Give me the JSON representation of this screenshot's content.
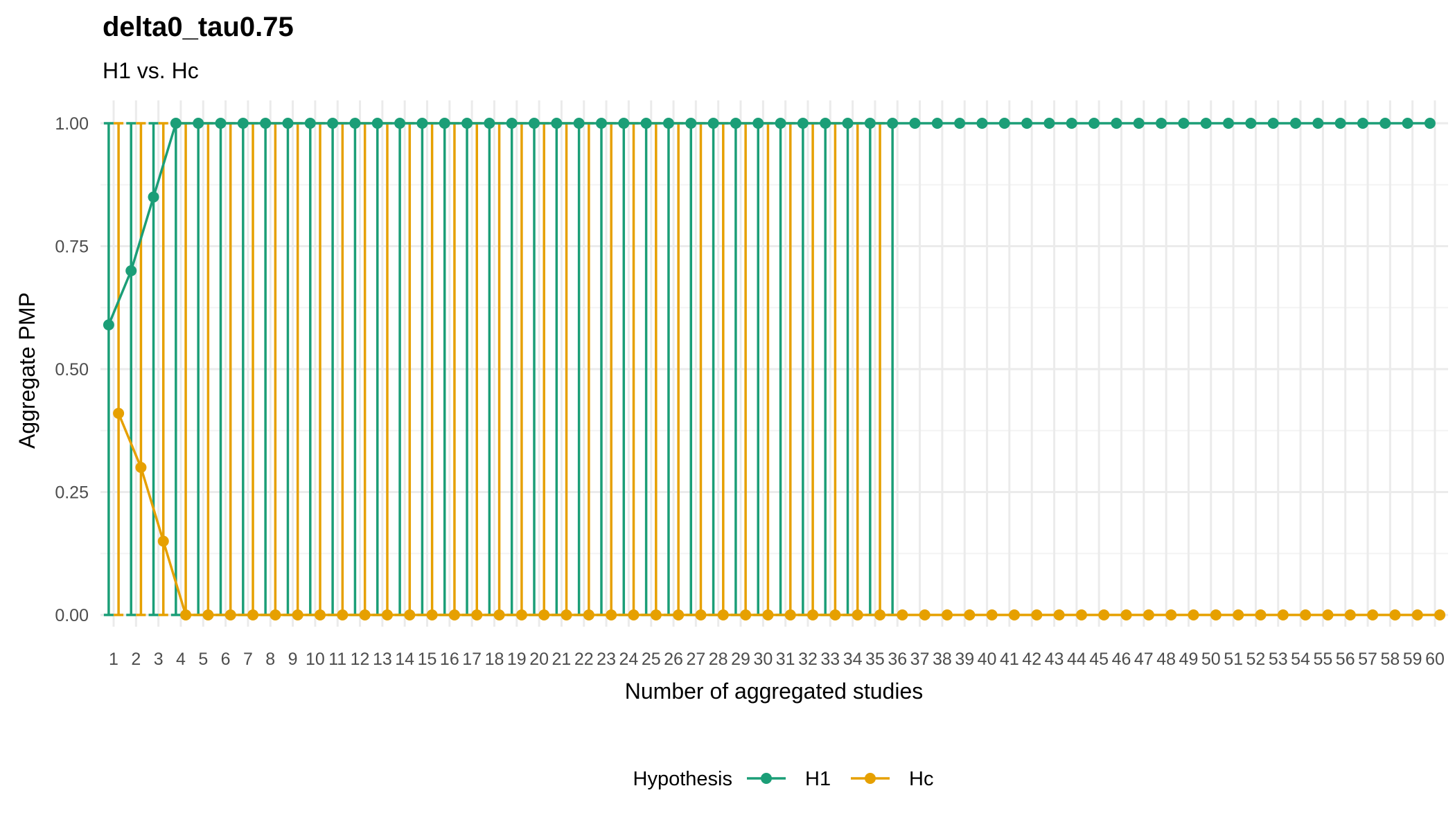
{
  "chart_data": {
    "type": "line",
    "title": "delta0_tau0.75",
    "subtitle": "H1 vs. Hc",
    "xlabel": "Number of aggregated studies",
    "ylabel": "Aggregate PMP",
    "ylim": [
      0,
      1
    ],
    "xlim": [
      1,
      60
    ],
    "y_ticks": [
      "0.00",
      "0.25",
      "0.50",
      "0.75",
      "1.00"
    ],
    "x": [
      1,
      2,
      3,
      4,
      5,
      6,
      7,
      8,
      9,
      10,
      11,
      12,
      13,
      14,
      15,
      16,
      17,
      18,
      19,
      20,
      21,
      22,
      23,
      24,
      25,
      26,
      27,
      28,
      29,
      30,
      31,
      32,
      33,
      34,
      35,
      36,
      37,
      38,
      39,
      40,
      41,
      42,
      43,
      44,
      45,
      46,
      47,
      48,
      49,
      50,
      51,
      52,
      53,
      54,
      55,
      56,
      57,
      58,
      59,
      60
    ],
    "grid": true,
    "legend": {
      "title": "Hypothesis",
      "position": "bottom"
    },
    "series": [
      {
        "name": "H1",
        "color": "#1b9e77",
        "values": [
          0.59,
          0.7,
          0.85,
          1.0,
          1.0,
          1.0,
          1.0,
          1.0,
          1.0,
          1.0,
          1.0,
          1.0,
          1.0,
          1.0,
          1.0,
          1.0,
          1.0,
          1.0,
          1.0,
          1.0,
          1.0,
          1.0,
          1.0,
          1.0,
          1.0,
          1.0,
          1.0,
          1.0,
          1.0,
          1.0,
          1.0,
          1.0,
          1.0,
          1.0,
          1.0,
          1.0,
          1.0,
          1.0,
          1.0,
          1.0,
          1.0,
          1.0,
          1.0,
          1.0,
          1.0,
          1.0,
          1.0,
          1.0,
          1.0,
          1.0,
          1.0,
          1.0,
          1.0,
          1.0,
          1.0,
          1.0,
          1.0,
          1.0,
          1.0,
          1.0
        ],
        "interval_x_max": 36
      },
      {
        "name": "Hc",
        "color": "#e6a000",
        "values": [
          0.41,
          0.3,
          0.15,
          0.0,
          0.0,
          0.0,
          0.0,
          0.0,
          0.0,
          0.0,
          0.0,
          0.0,
          0.0,
          0.0,
          0.0,
          0.0,
          0.0,
          0.0,
          0.0,
          0.0,
          0.0,
          0.0,
          0.0,
          0.0,
          0.0,
          0.0,
          0.0,
          0.0,
          0.0,
          0.0,
          0.0,
          0.0,
          0.0,
          0.0,
          0.0,
          0.0,
          0.0,
          0.0,
          0.0,
          0.0,
          0.0,
          0.0,
          0.0,
          0.0,
          0.0,
          0.0,
          0.0,
          0.0,
          0.0,
          0.0,
          0.0,
          0.0,
          0.0,
          0.0,
          0.0,
          0.0,
          0.0,
          0.0,
          0.0,
          0.0
        ],
        "interval_x_max": 35
      }
    ]
  }
}
